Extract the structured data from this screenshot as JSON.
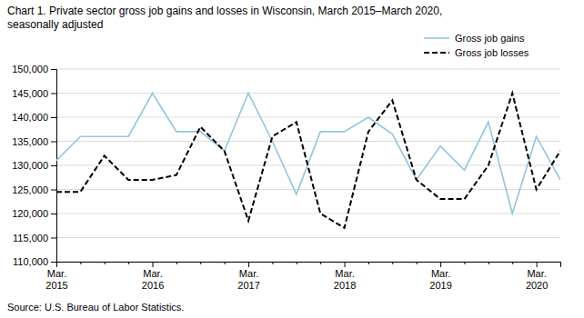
{
  "chart_data": {
    "type": "line",
    "title": "Chart 1. Private sector gross job gains and losses  in Wisconsin, March 2015–March 2020,",
    "subtitle": "seasonally adjusted",
    "annotations": [
      "Source: U.S. Bureau of Labor Statistics."
    ],
    "categories": [
      "Mar.\n2015",
      null,
      null,
      null,
      "Mar.\n2016",
      null,
      null,
      null,
      "Mar.\n2017",
      null,
      null,
      null,
      "Mar.\n2018",
      null,
      null,
      null,
      "Mar.\n2019",
      null,
      null,
      null,
      "Mar.\n2020",
      null
    ],
    "series": [
      {
        "name": "Gross job gains",
        "color": "#92C5DE",
        "line_style": "solid",
        "values": [
          131000,
          136000,
          136000,
          136000,
          145000,
          137000,
          137000,
          133000,
          145000,
          135000,
          124000,
          137000,
          137000,
          140000,
          136500,
          127000,
          134000,
          129000,
          139000,
          120000,
          136000,
          127000
        ]
      },
      {
        "name": "Gross job losses",
        "color": "#000000",
        "line_style": "dashed",
        "values": [
          124500,
          124500,
          132000,
          127000,
          127000,
          128000,
          138000,
          133000,
          118500,
          136000,
          139000,
          120000,
          117000,
          137000,
          143500,
          127000,
          123000,
          123000,
          130000,
          145000,
          125000,
          133000
        ]
      }
    ],
    "ylim": [
      110000,
      150000
    ],
    "yticks": [
      {
        "value": 110000,
        "label": "110,000"
      },
      {
        "value": 115000,
        "label": "115,000"
      },
      {
        "value": 120000,
        "label": "120,000"
      },
      {
        "value": 125000,
        "label": "125,000"
      },
      {
        "value": 130000,
        "label": "130,000"
      },
      {
        "value": 135000,
        "label": "135,000"
      },
      {
        "value": 140000,
        "label": "140,000"
      },
      {
        "value": 145000,
        "label": "145,000"
      },
      {
        "value": 150000,
        "label": "150,000"
      }
    ],
    "grid": true,
    "legend": "top-right"
  }
}
